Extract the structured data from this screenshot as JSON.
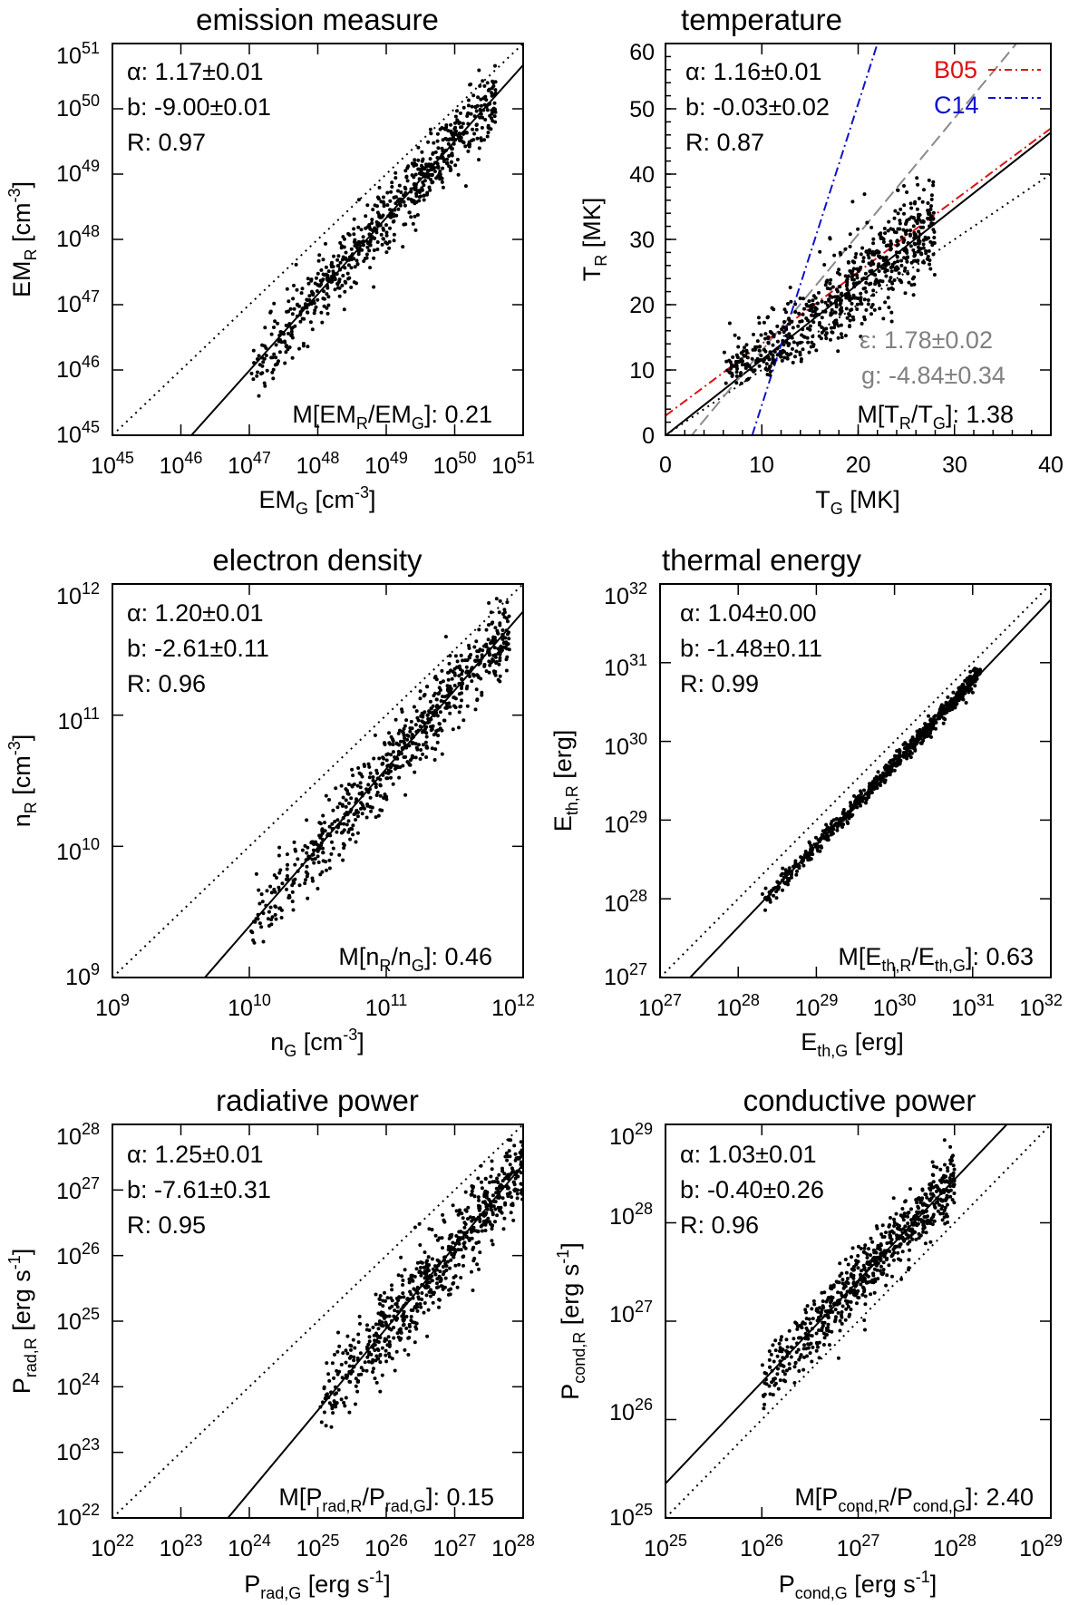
{
  "figure": {
    "panels": [
      {
        "key": "em",
        "title": "emission measure",
        "scale": "log",
        "xlim_exp": [
          45,
          51
        ],
        "ylim_exp": [
          45,
          51
        ],
        "x_tick_exps": [
          45,
          46,
          47,
          48,
          49,
          50,
          51
        ],
        "y_tick_exps": [
          45,
          46,
          47,
          48,
          49,
          50,
          51
        ],
        "xlabel": {
          "main": "EM",
          "sub": "G",
          "unit": " [cm",
          "unit_sup": "-3",
          "tail": "]"
        },
        "ylabel": {
          "main": "EM",
          "sub": "R",
          "unit": " [cm",
          "unit_sup": "-3",
          "tail": "]"
        },
        "stats": {
          "alpha": "α: 1.17±0.01",
          "b": "b: -9.00±0.01",
          "r": "R: 0.97"
        },
        "median": {
          "prefix": "M[EM",
          "sub1": "R",
          "mid": "/EM",
          "sub2": "G",
          "suffix": "]: 0.21"
        }
      },
      {
        "key": "temp",
        "title": "temperature",
        "scale": "linear",
        "xlim": [
          0,
          40
        ],
        "ylim": [
          0,
          60
        ],
        "x_ticks": [
          0,
          10,
          20,
          30,
          40
        ],
        "y_ticks": [
          0,
          10,
          20,
          30,
          40,
          50,
          60
        ],
        "xlabel": {
          "main": "T",
          "sub": "G",
          "unit": " [MK]",
          "unit_sup": "",
          "tail": ""
        },
        "ylabel": {
          "main": "T",
          "sub": "R",
          "unit": " [MK]",
          "unit_sup": "",
          "tail": ""
        },
        "stats": {
          "alpha": "α: 1.16±0.01",
          "b": "b: -0.03±0.02",
          "r": "R: 0.87"
        },
        "extra_stats": {
          "eps": "ε: 1.78±0.02",
          "g": "g: -4.84±0.34"
        },
        "median": {
          "prefix": "M[T",
          "sub1": "R",
          "mid": "/T",
          "sub2": "G",
          "suffix": "]: 1.38"
        },
        "legend": [
          {
            "label": "B05",
            "color": "#dd1111"
          },
          {
            "label": "C14",
            "color": "#1111cc"
          }
        ]
      },
      {
        "key": "ne",
        "title": "electron density",
        "scale": "log",
        "xlim_exp": [
          9,
          12
        ],
        "ylim_exp": [
          9,
          12
        ],
        "x_tick_exps": [
          9,
          10,
          11,
          12
        ],
        "y_tick_exps": [
          9,
          10,
          11,
          12
        ],
        "xlabel": {
          "main": "n",
          "sub": "G",
          "unit": " [cm",
          "unit_sup": "-3",
          "tail": "]"
        },
        "ylabel": {
          "main": "n",
          "sub": "R",
          "unit": " [cm",
          "unit_sup": "-3",
          "tail": "]"
        },
        "stats": {
          "alpha": "α: 1.20±0.01",
          "b": "b: -2.61±0.11",
          "r": "R: 0.96"
        },
        "median": {
          "prefix": "M[n",
          "sub1": "R",
          "mid": "/n",
          "sub2": "G",
          "suffix": "]: 0.46"
        }
      },
      {
        "key": "eth",
        "title": "thermal energy",
        "scale": "log",
        "xlim_exp": [
          27,
          32
        ],
        "ylim_exp": [
          27,
          32
        ],
        "x_tick_exps": [
          27,
          28,
          29,
          30,
          31,
          32
        ],
        "y_tick_exps": [
          27,
          28,
          29,
          30,
          31,
          32
        ],
        "xlabel": {
          "main": "E",
          "sub": "th,G",
          "unit": " [erg]",
          "unit_sup": "",
          "tail": ""
        },
        "ylabel": {
          "main": "E",
          "sub": "th,R",
          "unit": " [erg]",
          "unit_sup": "",
          "tail": ""
        },
        "stats": {
          "alpha": "α: 1.04±0.00",
          "b": "b: -1.48±0.11",
          "r": "R: 0.99"
        },
        "median": {
          "prefix": "M[E",
          "sub1": "th,R",
          "mid": "/E",
          "sub2": "th,G",
          "suffix": "]: 0.63"
        }
      },
      {
        "key": "prad",
        "title": "radiative power",
        "scale": "log",
        "xlim_exp": [
          22,
          28
        ],
        "ylim_exp": [
          22,
          28
        ],
        "x_tick_exps": [
          22,
          23,
          24,
          25,
          26,
          27,
          28
        ],
        "y_tick_exps": [
          22,
          23,
          24,
          25,
          26,
          27,
          28
        ],
        "xlabel": {
          "main": "P",
          "sub": "rad,G",
          "unit": " [erg s",
          "unit_sup": "-1",
          "tail": "]"
        },
        "ylabel": {
          "main": "P",
          "sub": "rad,R",
          "unit": " [erg s",
          "unit_sup": "-1",
          "tail": "]"
        },
        "stats": {
          "alpha": "α: 1.25±0.01",
          "b": "b: -7.61±0.31",
          "r": "R: 0.95"
        },
        "median": {
          "prefix": "M[P",
          "sub1": "rad,R",
          "mid": "/P",
          "sub2": "rad,G",
          "suffix": "]: 0.15"
        }
      },
      {
        "key": "pcond",
        "title": "conductive power",
        "scale": "log",
        "xlim_exp": [
          25,
          29
        ],
        "ylim_exp": [
          25,
          29
        ],
        "x_tick_exps": [
          25,
          26,
          27,
          28,
          29
        ],
        "y_tick_exps": [
          25,
          26,
          27,
          28,
          29
        ],
        "xlabel": {
          "main": "P",
          "sub": "cond,G",
          "unit": " [erg s",
          "unit_sup": "-1",
          "tail": "]"
        },
        "ylabel": {
          "main": "P",
          "sub": "cond,R",
          "unit": " [erg s",
          "unit_sup": "-1",
          "tail": "]"
        },
        "stats": {
          "alpha": "α: 1.03±0.01",
          "b": "b: -0.40±0.26",
          "r": "R: 0.96"
        },
        "median": {
          "prefix": "M[P",
          "sub1": "cond,R",
          "mid": "/P",
          "sub2": "cond,G",
          "suffix": "]: 2.40"
        }
      }
    ]
  },
  "chart_data": [
    {
      "type": "scatter",
      "title": "emission measure",
      "xlabel": "EM_G [cm^-3]",
      "ylabel": "EM_R [cm^-3]",
      "xscale": "log",
      "yscale": "log",
      "xlim": [
        1e+45,
        1e+51
      ],
      "ylim": [
        1e+45,
        1e+51
      ],
      "reference_line": "y = x (dotted)",
      "fit": {
        "alpha": 1.17,
        "b": -9.0,
        "form": "log y = alpha log x + b"
      },
      "correlation": 0.97,
      "median_ratio": 0.21,
      "cloud": {
        "log_x_range": [
          47.0,
          50.6
        ],
        "log_y_spread": 0.25,
        "points": 700
      }
    },
    {
      "type": "scatter",
      "title": "temperature",
      "xlabel": "T_G [MK]",
      "ylabel": "T_R [MK]",
      "xscale": "linear",
      "yscale": "linear",
      "xlim": [
        0,
        40
      ],
      "ylim": [
        0,
        60
      ],
      "reference_line": "y = x (dotted)",
      "fit": {
        "alpha": 1.16,
        "b": -0.03,
        "form": "y = alpha x + b"
      },
      "alt_fit": {
        "epsilon": 1.78,
        "g": -4.84,
        "form": "y = epsilon x + g"
      },
      "correlation": 0.87,
      "median_ratio": 1.38,
      "reference_relations": [
        {
          "name": "B05",
          "points": [
            [
              0,
              3
            ],
            [
              40,
              47
            ]
          ]
        },
        {
          "name": "C14",
          "points": [
            [
              9,
              0
            ],
            [
              22,
              60
            ]
          ]
        }
      ],
      "cloud": {
        "x_range": [
          6,
          28
        ],
        "y_spread": 3.5,
        "points": 700
      }
    },
    {
      "type": "scatter",
      "title": "electron density",
      "xlabel": "n_G [cm^-3]",
      "ylabel": "n_R [cm^-3]",
      "xscale": "log",
      "yscale": "log",
      "xlim": [
        1000000000.0,
        1000000000000.0
      ],
      "ylim": [
        1000000000.0,
        1000000000000.0
      ],
      "reference_line": "y = x (dotted)",
      "fit": {
        "alpha": 1.2,
        "b": -2.61,
        "form": "log y = alpha log x + b"
      },
      "correlation": 0.96,
      "median_ratio": 0.46,
      "cloud": {
        "log_x_range": [
          10.0,
          11.9
        ],
        "log_y_spread": 0.14,
        "points": 700
      }
    },
    {
      "type": "scatter",
      "title": "thermal energy",
      "xlabel": "E_th,G [erg]",
      "ylabel": "E_th,R [erg]",
      "xscale": "log",
      "yscale": "log",
      "xlim": [
        1e+27,
        1e+32
      ],
      "ylim": [
        1e+27,
        1e+32
      ],
      "reference_line": "y = x (dotted)",
      "fit": {
        "alpha": 1.04,
        "b": -1.48,
        "form": "log y = alpha log x + b"
      },
      "correlation": 0.99,
      "median_ratio": 0.63,
      "cloud": {
        "log_x_range": [
          28.3,
          31.1
        ],
        "log_y_spread": 0.06,
        "points": 700
      }
    },
    {
      "type": "scatter",
      "title": "radiative power",
      "xlabel": "P_rad,G [erg s^-1]",
      "ylabel": "P_rad,R [erg s^-1]",
      "xscale": "log",
      "yscale": "log",
      "xlim": [
        1e+22,
        1e+28
      ],
      "ylim": [
        1e+22,
        1e+28
      ],
      "reference_line": "y = x (dotted)",
      "fit": {
        "alpha": 1.25,
        "b": -7.61,
        "form": "log y = alpha log x + b"
      },
      "correlation": 0.95,
      "median_ratio": 0.15,
      "cloud": {
        "log_x_range": [
          25.0,
          28.0
        ],
        "log_y_spread": 0.3,
        "points": 700
      }
    },
    {
      "type": "scatter",
      "title": "conductive power",
      "xlabel": "P_cond,G [erg s^-1]",
      "ylabel": "P_cond,R [erg s^-1]",
      "xscale": "log",
      "yscale": "log",
      "xlim": [
        1e+25,
        1e+29
      ],
      "ylim": [
        1e+25,
        1e+29
      ],
      "reference_line": "y = x (dotted)",
      "fit": {
        "alpha": 1.03,
        "b": -0.4,
        "form": "log y = alpha log x + b"
      },
      "correlation": 0.96,
      "median_ratio": 2.4,
      "cloud": {
        "log_x_range": [
          26.0,
          28.0
        ],
        "log_y_spread": 0.16,
        "points": 700
      }
    }
  ]
}
